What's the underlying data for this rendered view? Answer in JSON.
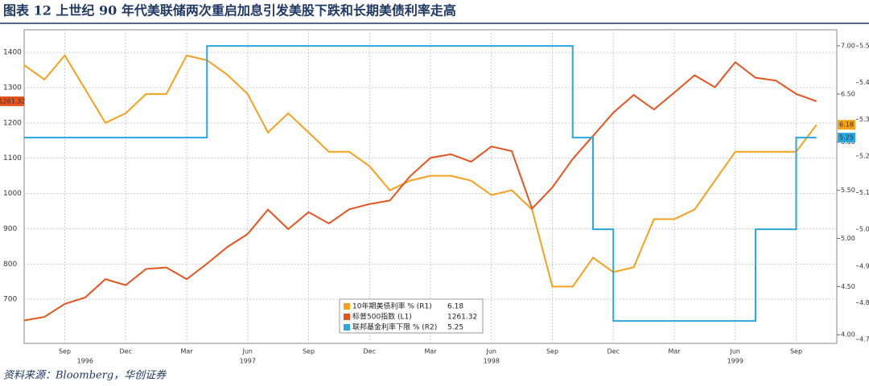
{
  "chart_data": {
    "type": "line",
    "title": "图表 12 上世纪 90 年代美联储两次重启加息引发美股下跌和长期美债利率走高",
    "source": "资料来源：Bloomberg，华创证券",
    "x": [
      "1996-07",
      "1996-08",
      "1996-09",
      "1996-10",
      "1996-11",
      "1996-12",
      "1997-01",
      "1997-02",
      "1997-03",
      "1997-04",
      "1997-05",
      "1997-06",
      "1997-07",
      "1997-08",
      "1997-09",
      "1997-10",
      "1997-11",
      "1997-12",
      "1998-01",
      "1998-02",
      "1998-03",
      "1998-04",
      "1998-05",
      "1998-06",
      "1998-07",
      "1998-08",
      "1998-09",
      "1998-10",
      "1998-11",
      "1998-12",
      "1999-01",
      "1999-02",
      "1999-03",
      "1999-04",
      "1999-05",
      "1999-06",
      "1999-07",
      "1999-08",
      "1999-09",
      "1999-10"
    ],
    "xlim": [
      "1996-07",
      "1999-11"
    ],
    "xticks": [
      {
        "value": "1996-09",
        "label": "Sep"
      },
      {
        "value": "1996-12",
        "label": "Dec"
      },
      {
        "value": "1997-03",
        "label": "Mar"
      },
      {
        "value": "1997-06",
        "label": "Jun"
      },
      {
        "value": "1997-09",
        "label": "Sep"
      },
      {
        "value": "1997-12",
        "label": "Dec"
      },
      {
        "value": "1998-03",
        "label": "Mar"
      },
      {
        "value": "1998-06",
        "label": "Jun"
      },
      {
        "value": "1998-09",
        "label": "Sep"
      },
      {
        "value": "1998-12",
        "label": "Dec"
      },
      {
        "value": "1999-03",
        "label": "Mar"
      },
      {
        "value": "1999-06",
        "label": "Jun"
      },
      {
        "value": "1999-09",
        "label": "Sep"
      }
    ],
    "xyears": [
      {
        "value": "1996-10",
        "label": "1996"
      },
      {
        "value": "1997-06",
        "label": "1997"
      },
      {
        "value": "1998-06",
        "label": "1998"
      },
      {
        "value": "1999-06",
        "label": "1999"
      }
    ],
    "ylim": [
      575,
      1464
    ],
    "yticks": [
      700,
      800,
      900,
      1000,
      1100,
      1200,
      1300,
      1400
    ],
    "y2lim": [
      3.91,
      7.167
    ],
    "y2ticks": [
      {
        "value": 4,
        "label": "4.00"
      },
      {
        "value": 4.5,
        "label": "4.50"
      },
      {
        "value": 5,
        "label": "5.00"
      },
      {
        "value": 5.5,
        "label": "5.50"
      },
      {
        "value": 6,
        "label": "6.00"
      },
      {
        "value": 6.5,
        "label": "6.50"
      },
      {
        "value": 7,
        "label": "7.00"
      }
    ],
    "y3lim": [
      4.689,
      5.544
    ],
    "y3ticks": [
      {
        "value": 4.7,
        "label": "4.70"
      },
      {
        "value": 4.8,
        "label": "4.80"
      },
      {
        "value": 4.9,
        "label": "4.90"
      },
      {
        "value": 5,
        "label": "5.00"
      },
      {
        "value": 5.1,
        "label": "5.10"
      },
      {
        "value": 5.2,
        "label": "5.20"
      },
      {
        "value": 5.3,
        "label": "5.30"
      },
      {
        "value": 5.4,
        "label": "5.40"
      },
      {
        "value": 5.5,
        "label": "5.50"
      }
    ],
    "grid": true,
    "series": [
      {
        "name": "10年期美债利率 % (R1)",
        "color": "#f5a11c",
        "axis": "y2",
        "last": 6.18,
        "values": [
          6.8,
          6.65,
          6.9,
          6.55,
          6.2,
          6.3,
          6.5,
          6.5,
          6.9,
          6.85,
          6.7,
          6.5,
          6.1,
          6.3,
          6.1,
          5.9,
          5.9,
          5.75,
          5.5,
          5.6,
          5.65,
          5.65,
          5.6,
          5.45,
          5.5,
          5.3,
          4.5,
          4.5,
          4.8,
          4.65,
          4.7,
          5.2,
          5.2,
          5.3,
          5.6,
          5.9,
          5.9,
          5.9,
          5.9,
          6.18
        ]
      },
      {
        "name": "标普500指数 (L1)",
        "color": "#e8541e",
        "axis": "y",
        "last": 1261.32,
        "values": [
          640,
          650,
          687,
          705,
          757,
          740,
          786,
          790,
          757,
          801,
          848,
          885,
          954,
          899,
          947,
          915,
          955,
          970,
          980,
          1049,
          1101,
          1111,
          1090,
          1133,
          1120,
          957,
          1017,
          1098,
          1163,
          1229,
          1279,
          1238,
          1286,
          1335,
          1301,
          1372,
          1328,
          1320,
          1282,
          1261.32
        ]
      },
      {
        "name": "联邦基金利率下限 % (R2)",
        "color": "#2aa6e0",
        "axis": "y3",
        "step": true,
        "last": 5.25,
        "values": [
          5.25,
          5.25,
          5.25,
          5.25,
          5.25,
          5.25,
          5.25,
          5.25,
          5.25,
          5.5,
          5.5,
          5.5,
          5.5,
          5.5,
          5.5,
          5.5,
          5.5,
          5.5,
          5.5,
          5.5,
          5.5,
          5.5,
          5.5,
          5.5,
          5.5,
          5.5,
          5.5,
          5.25,
          5,
          4.75,
          4.75,
          4.75,
          4.75,
          4.75,
          4.75,
          4.75,
          5,
          5,
          5.25,
          5.25
        ]
      }
    ]
  }
}
